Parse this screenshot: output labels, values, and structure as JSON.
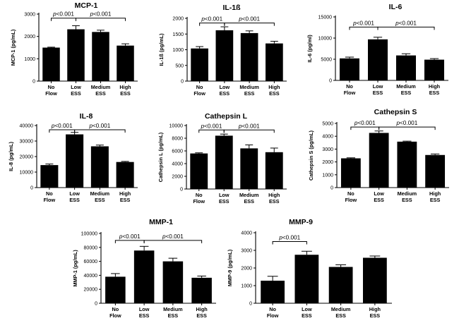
{
  "chart_data": [
    {
      "type": "bar",
      "title": "MCP-1",
      "ylabel": "MCP-1 (pg/mL)",
      "xlabel": "",
      "categories": [
        "No Flow",
        "Low ESS",
        "Medium ESS",
        "High ESS"
      ],
      "values": [
        1500,
        2320,
        2200,
        1590
      ],
      "errors": [
        20,
        160,
        80,
        80
      ],
      "ylim": [
        0,
        3000
      ],
      "yticks": [
        0,
        1000,
        2000,
        3000
      ],
      "annotations": [
        {
          "label": "p<0.001",
          "from": 0,
          "to": 1,
          "y": 2820
        },
        {
          "label": "p<0.001",
          "from": 1,
          "to": 3,
          "y": 2820
        }
      ]
    },
    {
      "type": "bar",
      "title": "IL-1ß",
      "ylabel": "IL-1ß (pg/mL)",
      "xlabel": "",
      "categories": [
        "No Flow",
        "Low ESS",
        "Medium ESS",
        "High ESS"
      ],
      "values": [
        1040,
        1620,
        1530,
        1200
      ],
      "errors": [
        60,
        110,
        70,
        70
      ],
      "ylim": [
        0,
        2000
      ],
      "yticks": [
        0,
        500,
        1000,
        1500,
        2000
      ],
      "annotations": [
        {
          "label": "p<0.001",
          "from": 0,
          "to": 1,
          "y": 1850
        },
        {
          "label": "p<0.001",
          "from": 1,
          "to": 3,
          "y": 1850
        }
      ]
    },
    {
      "type": "bar",
      "title": "IL-6",
      "ylabel": "IL-6 (pg/ml)",
      "xlabel": "",
      "categories": [
        "No Flow",
        "Low ESS",
        "Medium ESS",
        "High ESS"
      ],
      "values": [
        5200,
        9700,
        5900,
        4900
      ],
      "errors": [
        300,
        500,
        400,
        250
      ],
      "ylim": [
        0,
        15000
      ],
      "yticks": [
        0,
        5000,
        10000,
        15000
      ],
      "annotations": [
        {
          "label": "p<0.001",
          "from": 0,
          "to": 1,
          "y": 12600
        },
        {
          "label": "p<0.001",
          "from": 1,
          "to": 3,
          "y": 12600
        }
      ]
    },
    {
      "type": "bar",
      "title": "IL-8",
      "ylabel": "IL-8 (pg/mL)",
      "xlabel": "",
      "categories": [
        "No Flow",
        "Low ESS",
        "Medium ESS",
        "High ESS"
      ],
      "values": [
        14500,
        34300,
        26600,
        16500
      ],
      "errors": [
        700,
        1300,
        800,
        400
      ],
      "ylim": [
        0,
        40000
      ],
      "yticks": [
        0,
        10000,
        20000,
        30000,
        40000
      ],
      "annotations": [
        {
          "label": "p<0.001",
          "from": 0,
          "to": 1,
          "y": 37300
        },
        {
          "label": "p<0.001",
          "from": 1,
          "to": 3,
          "y": 37300
        }
      ]
    },
    {
      "type": "bar",
      "title": "Cathepsin L",
      "ylabel": "Cathepsin L (pg/mL)",
      "xlabel": "",
      "categories": [
        "No Flow",
        "Low ESS",
        "Medium ESS",
        "High ESS"
      ],
      "values": [
        5600,
        8400,
        6400,
        5800
      ],
      "errors": [
        100,
        250,
        550,
        650
      ],
      "ylim": [
        0,
        10000
      ],
      "yticks": [
        0,
        2000,
        4000,
        6000,
        8000,
        10000
      ],
      "annotations": [
        {
          "label": "p<0.001",
          "from": 0,
          "to": 1,
          "y": 9300
        },
        {
          "label": "p<0.001",
          "from": 1,
          "to": 3,
          "y": 9300
        }
      ]
    },
    {
      "type": "bar",
      "title": "Cathepsin S",
      "ylabel": "Cathepsin S (pg/mL)",
      "xlabel": "",
      "categories": [
        "No Flow",
        "Low ESS",
        "Medium ESS",
        "High ESS"
      ],
      "values": [
        2280,
        4260,
        3580,
        2540
      ],
      "errors": [
        40,
        150,
        40,
        80
      ],
      "ylim": [
        0,
        5000
      ],
      "yticks": [
        0,
        1000,
        2000,
        3000,
        4000,
        5000
      ],
      "annotations": [
        {
          "label": "p<0.001",
          "from": 0,
          "to": 1,
          "y": 4720
        },
        {
          "label": "p<0.001",
          "from": 1,
          "to": 3,
          "y": 4720
        }
      ]
    },
    {
      "type": "bar",
      "title": "MMP-1",
      "ylabel": "MMP-1 (pg/mL)",
      "xlabel": "",
      "categories": [
        "No Flow",
        "Low ESS",
        "Medium ESS",
        "High ESS"
      ],
      "values": [
        38000,
        75500,
        60000,
        36500
      ],
      "errors": [
        4500,
        6000,
        4500,
        2500
      ],
      "ylim": [
        0,
        100000
      ],
      "yticks": [
        0,
        20000,
        40000,
        60000,
        80000,
        100000
      ],
      "annotations": [
        {
          "label": "p<0.001",
          "from": 0,
          "to": 1,
          "y": 90000
        },
        {
          "label": "p<0.001",
          "from": 1,
          "to": 3,
          "y": 90000
        }
      ]
    },
    {
      "type": "bar",
      "title": "MMP-9",
      "ylabel": "MMP-9 (pg/mL)",
      "xlabel": "",
      "categories": [
        "No Flow",
        "Low ESS",
        "Medium ESS",
        "High ESS"
      ],
      "values": [
        1280,
        2750,
        2060,
        2580
      ],
      "errors": [
        250,
        200,
        120,
        100
      ],
      "ylim": [
        0,
        4000
      ],
      "yticks": [
        0,
        1000,
        2000,
        3000,
        4000
      ],
      "annotations": [
        {
          "label": "p<0.001",
          "from": 0,
          "to": 1,
          "y": 3500
        }
      ]
    }
  ]
}
